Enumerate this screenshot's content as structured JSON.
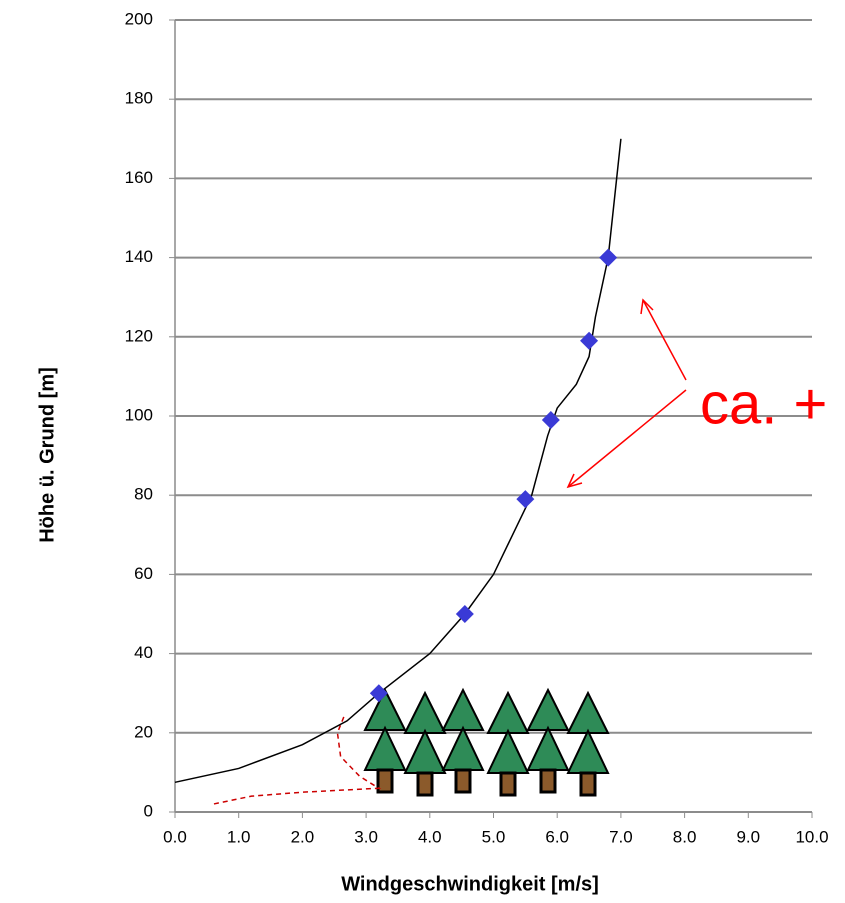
{
  "chart_data": {
    "type": "scatter",
    "xlabel": "Windgeschwindigkeit [m/s]",
    "ylabel": "Höhe ü. Grund [m]",
    "annotation": "ca. +",
    "xlim": [
      0,
      10
    ],
    "ylim": [
      0,
      200
    ],
    "xticks": [
      {
        "value": 0,
        "label": "0.0"
      },
      {
        "value": 1,
        "label": "1.0"
      },
      {
        "value": 2,
        "label": "2.0"
      },
      {
        "value": 3,
        "label": "3.0"
      },
      {
        "value": 4,
        "label": "4.0"
      },
      {
        "value": 5,
        "label": "5.0"
      },
      {
        "value": 6,
        "label": "6.0"
      },
      {
        "value": 7,
        "label": "7.0"
      },
      {
        "value": 8,
        "label": "8.0"
      },
      {
        "value": 9,
        "label": "9.0"
      },
      {
        "value": 10,
        "label": "10.0"
      }
    ],
    "yticks": [
      0,
      20,
      40,
      60,
      80,
      100,
      120,
      140,
      160,
      180,
      200
    ],
    "grid": true,
    "points": {
      "color": "#3a3ad6",
      "x": [
        3.2,
        4.55,
        5.5,
        5.9,
        6.5,
        6.8
      ],
      "values": [
        30,
        50,
        79,
        99,
        119,
        140
      ]
    },
    "curve": {
      "color": "#000000",
      "x": [
        0,
        1,
        2,
        2.7,
        3.2,
        4,
        4.55,
        5,
        5.3,
        5.6,
        5.85,
        6.0,
        6.3,
        6.5,
        6.6,
        6.8,
        7.0
      ],
      "values": [
        7.5,
        11,
        17,
        23,
        30,
        40,
        50,
        60,
        70,
        80,
        95,
        102,
        108,
        115,
        125,
        140,
        170
      ]
    },
    "forest_curve": {
      "color": "#cc0000",
      "x": [
        2.65,
        2.55,
        2.6,
        2.9,
        3.2,
        2.0,
        1.2,
        0.6
      ],
      "values": [
        24,
        20,
        14,
        9,
        6,
        5,
        4,
        2
      ]
    }
  }
}
